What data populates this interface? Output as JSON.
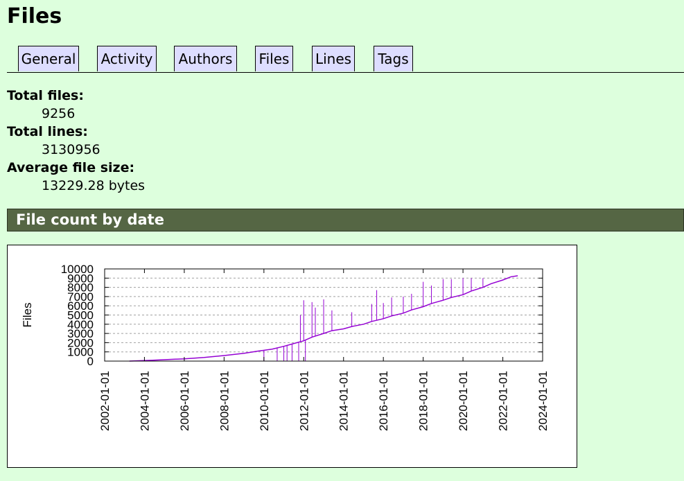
{
  "page": {
    "title": "Files"
  },
  "nav": {
    "tabs": [
      {
        "label": "General"
      },
      {
        "label": "Activity"
      },
      {
        "label": "Authors"
      },
      {
        "label": "Files",
        "active": true
      },
      {
        "label": "Lines"
      },
      {
        "label": "Tags"
      }
    ]
  },
  "stats": {
    "total_files_label": "Total files:",
    "total_files_value": "9256",
    "total_lines_label": "Total lines:",
    "total_lines_value": "3130956",
    "avg_size_label": "Average file size:",
    "avg_size_value": "13229.28 bytes"
  },
  "section": {
    "title": "File count by date"
  },
  "colors": {
    "background": "#ddffdd",
    "tab_background": "#ddddff",
    "section_header": "#556644",
    "series": "#9400d3"
  },
  "chart_data": {
    "type": "line",
    "title": "",
    "xlabel": "",
    "ylabel": "Files",
    "x_ticks": [
      "2002-01-01",
      "2004-01-01",
      "2006-01-01",
      "2008-01-01",
      "2010-01-01",
      "2012-01-01",
      "2014-01-01",
      "2016-01-01",
      "2018-01-01",
      "2020-01-01",
      "2022-01-01",
      "2024-01-01"
    ],
    "y_ticks": [
      0,
      1000,
      2000,
      3000,
      4000,
      5000,
      6000,
      7000,
      8000,
      9000,
      10000
    ],
    "xlim": [
      "2002-01-01",
      "2024-01-01"
    ],
    "ylim": [
      0,
      10000
    ],
    "grid": true,
    "series": [
      {
        "color": "#9400d3",
        "x": [
          "2003-04-01",
          "2004-06-01",
          "2006-01-01",
          "2007-01-01",
          "2008-01-01",
          "2009-01-01",
          "2009-10-01",
          "2010-06-01",
          "2011-01-01",
          "2011-06-01",
          "2012-01-01",
          "2012-06-01",
          "2013-01-01",
          "2013-06-01",
          "2014-01-01",
          "2014-06-01",
          "2015-01-01",
          "2015-06-01",
          "2016-01-01",
          "2016-06-01",
          "2017-01-01",
          "2017-06-01",
          "2018-01-01",
          "2018-06-01",
          "2019-01-01",
          "2019-06-01",
          "2020-01-01",
          "2020-06-01",
          "2021-01-01",
          "2021-06-01",
          "2022-01-01",
          "2022-06-01",
          "2022-10-01"
        ],
        "values": [
          0,
          100,
          250,
          400,
          600,
          850,
          1100,
          1300,
          1600,
          1850,
          2200,
          2600,
          3000,
          3300,
          3500,
          3750,
          4000,
          4300,
          4600,
          4900,
          5200,
          5550,
          5900,
          6250,
          6600,
          6900,
          7200,
          7600,
          8000,
          8400,
          8800,
          9150,
          9256
        ]
      }
    ],
    "spikes": [
      {
        "x": "2010-01-01",
        "value": 0
      },
      {
        "x": "2010-09-01",
        "value": 0
      },
      {
        "x": "2011-01-01",
        "value": 0
      },
      {
        "x": "2011-03-01",
        "value": 0
      },
      {
        "x": "2011-06-01",
        "value": 0
      },
      {
        "x": "2011-10-01",
        "value": 0
      },
      {
        "x": "2011-11-01",
        "value": 5000
      },
      {
        "x": "2012-01-01",
        "value": 6600
      },
      {
        "x": "2012-02-01",
        "value": 0
      },
      {
        "x": "2012-06-01",
        "value": 6400
      },
      {
        "x": "2012-08-01",
        "value": 5800
      },
      {
        "x": "2013-01-01",
        "value": 6700
      },
      {
        "x": "2013-06-01",
        "value": 5500
      },
      {
        "x": "2014-06-01",
        "value": 5300
      },
      {
        "x": "2015-06-01",
        "value": 6200
      },
      {
        "x": "2015-09-01",
        "value": 7700
      },
      {
        "x": "2016-01-01",
        "value": 6300
      },
      {
        "x": "2016-06-01",
        "value": 6900
      },
      {
        "x": "2017-01-01",
        "value": 7000
      },
      {
        "x": "2017-06-01",
        "value": 7300
      },
      {
        "x": "2018-01-01",
        "value": 8600
      },
      {
        "x": "2018-06-01",
        "value": 8200
      },
      {
        "x": "2019-01-01",
        "value": 8900
      },
      {
        "x": "2019-06-01",
        "value": 8900
      },
      {
        "x": "2020-01-01",
        "value": 9000
      },
      {
        "x": "2020-06-01",
        "value": 9000
      },
      {
        "x": "2021-01-01",
        "value": 9000
      }
    ]
  }
}
